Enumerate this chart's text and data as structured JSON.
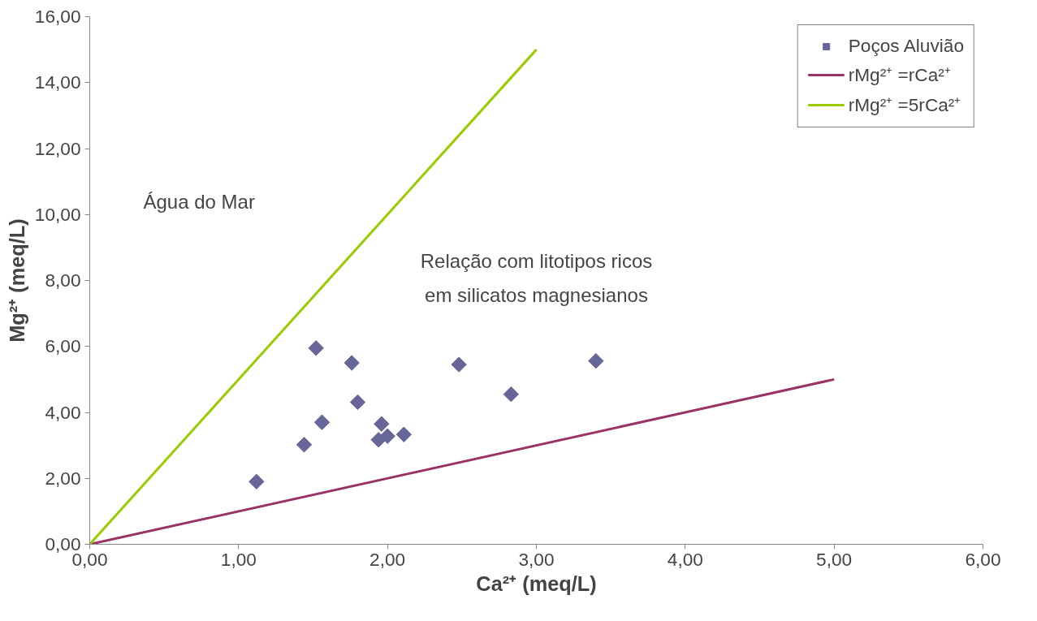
{
  "chart_data": {
    "type": "scatter",
    "xlabel": "Ca²⁺ (meq/L)",
    "ylabel": "Mg²⁺ (meq/L)",
    "xlim": [
      0,
      6
    ],
    "ylim": [
      0,
      16
    ],
    "xticks": [
      {
        "value": 0,
        "label": "0,00"
      },
      {
        "value": 1,
        "label": "1,00"
      },
      {
        "value": 2,
        "label": "2,00"
      },
      {
        "value": 3,
        "label": "3,00"
      },
      {
        "value": 4,
        "label": "4,00"
      },
      {
        "value": 5,
        "label": "5,00"
      },
      {
        "value": 6,
        "label": "6,00"
      }
    ],
    "yticks": [
      {
        "value": 0,
        "label": "0,00"
      },
      {
        "value": 2,
        "label": "2,00"
      },
      {
        "value": 4,
        "label": "4,00"
      },
      {
        "value": 6,
        "label": "6,00"
      },
      {
        "value": 8,
        "label": "8,00"
      },
      {
        "value": 10,
        "label": "10,00"
      },
      {
        "value": 12,
        "label": "12,00"
      },
      {
        "value": 14,
        "label": "14,00"
      },
      {
        "value": 16,
        "label": "16,00"
      }
    ],
    "grid": false,
    "legend": "top right",
    "annotations": [
      "Água do Mar",
      "Relação com litotipos ricos\nem silicatos magnesianos"
    ],
    "series": [
      {
        "name": "Poços Aluvião",
        "marker": "diamond",
        "color": "#666699",
        "x": [
          1.12,
          1.44,
          1.52,
          1.56,
          1.76,
          1.8,
          1.96,
          1.94,
          2.0,
          2.11,
          2.48,
          2.83,
          3.4
        ],
        "values": [
          1.9,
          3.02,
          5.95,
          3.7,
          5.5,
          4.31,
          3.65,
          3.17,
          3.28,
          3.33,
          5.45,
          4.55,
          5.56
        ]
      },
      {
        "name": "rMg²⁺ =rCa²⁺",
        "type": "line",
        "color": "#993366",
        "x": [
          0,
          5
        ],
        "values": [
          0,
          5
        ]
      },
      {
        "name": "rMg²⁺ =5rCa²⁺",
        "type": "line",
        "color": "#99cc00",
        "x": [
          0,
          3
        ],
        "values": [
          0,
          15
        ]
      }
    ]
  }
}
